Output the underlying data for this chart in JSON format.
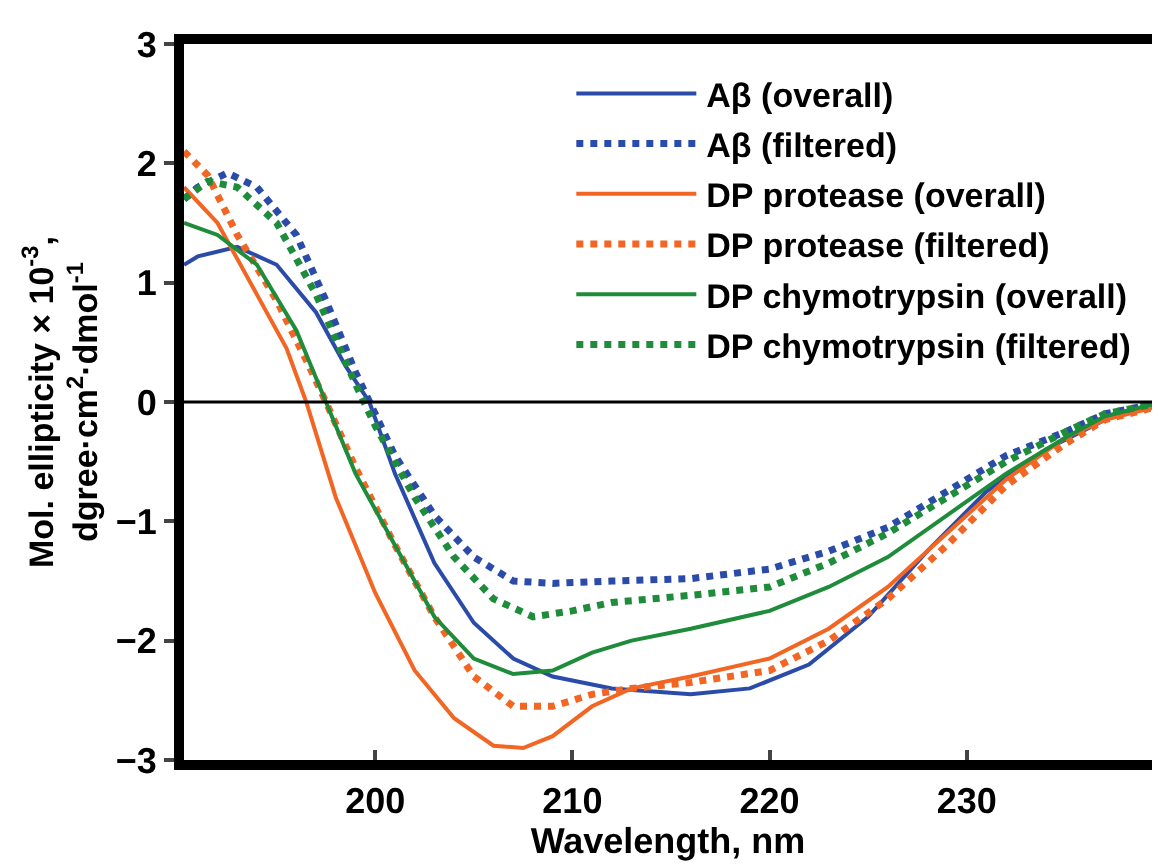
{
  "chart_data": {
    "type": "line",
    "xlabel": "Wavelength, nm",
    "ylabel": "Mol. ellipticity × 10$^{-3}$,\ndgree·cm$^{2}$·dmol$^{-1}$",
    "xlim": [
      190.3,
      239.4
    ],
    "xticks": [
      200,
      210,
      220,
      230
    ],
    "ylim": [
      -3,
      3
    ],
    "yticks": [
      -3,
      -2,
      -1,
      0,
      1,
      2,
      3
    ],
    "grid": false,
    "legend": "top right",
    "marker": "none",
    "ref_lines": [
      {
        "axis": "y",
        "value": 0,
        "color": "#000000"
      }
    ],
    "series": [
      {
        "name": "Aβ (overall)",
        "color": "#2b4ba8",
        "line_style": "solid",
        "x": [
          190.3,
          191,
          193,
          195,
          197,
          198.5,
          199.7,
          201,
          203,
          205,
          207,
          209,
          212,
          216,
          219,
          222,
          225,
          228,
          231,
          234,
          237,
          239.4
        ],
        "values": [
          1.15,
          1.22,
          1.3,
          1.15,
          0.75,
          0.3,
          0,
          -0.6,
          -1.35,
          -1.85,
          -2.15,
          -2.3,
          -2.4,
          -2.45,
          -2.4,
          -2.2,
          -1.8,
          -1.25,
          -0.75,
          -0.4,
          -0.15,
          -0.02
        ]
      },
      {
        "name": "Aβ (filtered)",
        "color": "#2b4ba8",
        "line_style": "dotted",
        "x": [
          190.3,
          191,
          192.5,
          194,
          196,
          197.5,
          199,
          200,
          201,
          203,
          205,
          207,
          209,
          212,
          216,
          220,
          223,
          226,
          229,
          232,
          235,
          237,
          239.4
        ],
        "values": [
          1.7,
          1.8,
          1.92,
          1.8,
          1.4,
          0.85,
          0.25,
          -0.1,
          -0.45,
          -0.95,
          -1.3,
          -1.5,
          -1.52,
          -1.5,
          -1.48,
          -1.4,
          -1.25,
          -1.05,
          -0.75,
          -0.45,
          -0.25,
          -0.1,
          -0.02
        ]
      },
      {
        "name": "DP protease (overall)",
        "color": "#f26522",
        "line_style": "solid",
        "x": [
          190.3,
          192,
          194,
          195.5,
          196.5,
          198,
          200,
          202,
          204,
          206,
          207.5,
          209,
          211,
          213,
          216,
          220,
          223,
          226,
          229,
          232,
          235,
          237,
          239.4
        ],
        "values": [
          1.8,
          1.5,
          0.9,
          0.45,
          0,
          -0.8,
          -1.6,
          -2.25,
          -2.65,
          -2.88,
          -2.9,
          -2.8,
          -2.55,
          -2.4,
          -2.3,
          -2.15,
          -1.9,
          -1.55,
          -1.1,
          -0.65,
          -0.3,
          -0.15,
          -0.05
        ]
      },
      {
        "name": "DP protease (filtered)",
        "color": "#f26522",
        "line_style": "dotted",
        "x": [
          190.3,
          191.5,
          193,
          195,
          196.5,
          197.5,
          199,
          201,
          203,
          205,
          207,
          209,
          211,
          213,
          216,
          220,
          223,
          226,
          229,
          232,
          235,
          237,
          239.4
        ],
        "values": [
          2.1,
          1.9,
          1.4,
          0.85,
          0.35,
          0,
          -0.55,
          -1.2,
          -1.8,
          -2.3,
          -2.55,
          -2.55,
          -2.45,
          -2.4,
          -2.35,
          -2.25,
          -2.0,
          -1.65,
          -1.2,
          -0.7,
          -0.35,
          -0.15,
          -0.05
        ]
      },
      {
        "name": "DP chymotrypsin (overall)",
        "color": "#1e8c3a",
        "line_style": "solid",
        "x": [
          190.3,
          192,
          194,
          196,
          197.5,
          199,
          201,
          203,
          205,
          207,
          209,
          211,
          213,
          216,
          220,
          223,
          226,
          229,
          232,
          235,
          237,
          239.4
        ],
        "values": [
          1.5,
          1.4,
          1.15,
          0.6,
          0,
          -0.6,
          -1.2,
          -1.8,
          -2.15,
          -2.28,
          -2.25,
          -2.1,
          -2.0,
          -1.9,
          -1.75,
          -1.55,
          -1.3,
          -0.95,
          -0.6,
          -0.3,
          -0.12,
          -0.02
        ]
      },
      {
        "name": "DP chymotrypsin (filtered)",
        "color": "#1e8c3a",
        "line_style": "dotted",
        "x": [
          190.3,
          191.5,
          193,
          195,
          197,
          199,
          200,
          202,
          204,
          206,
          208,
          210,
          212,
          216,
          220,
          223,
          226,
          229,
          232,
          235,
          237,
          239.4
        ],
        "values": [
          1.7,
          1.85,
          1.8,
          1.5,
          0.9,
          0.15,
          -0.2,
          -0.8,
          -1.3,
          -1.65,
          -1.8,
          -1.75,
          -1.68,
          -1.62,
          -1.55,
          -1.35,
          -1.1,
          -0.8,
          -0.5,
          -0.25,
          -0.1,
          -0.02
        ]
      }
    ]
  }
}
